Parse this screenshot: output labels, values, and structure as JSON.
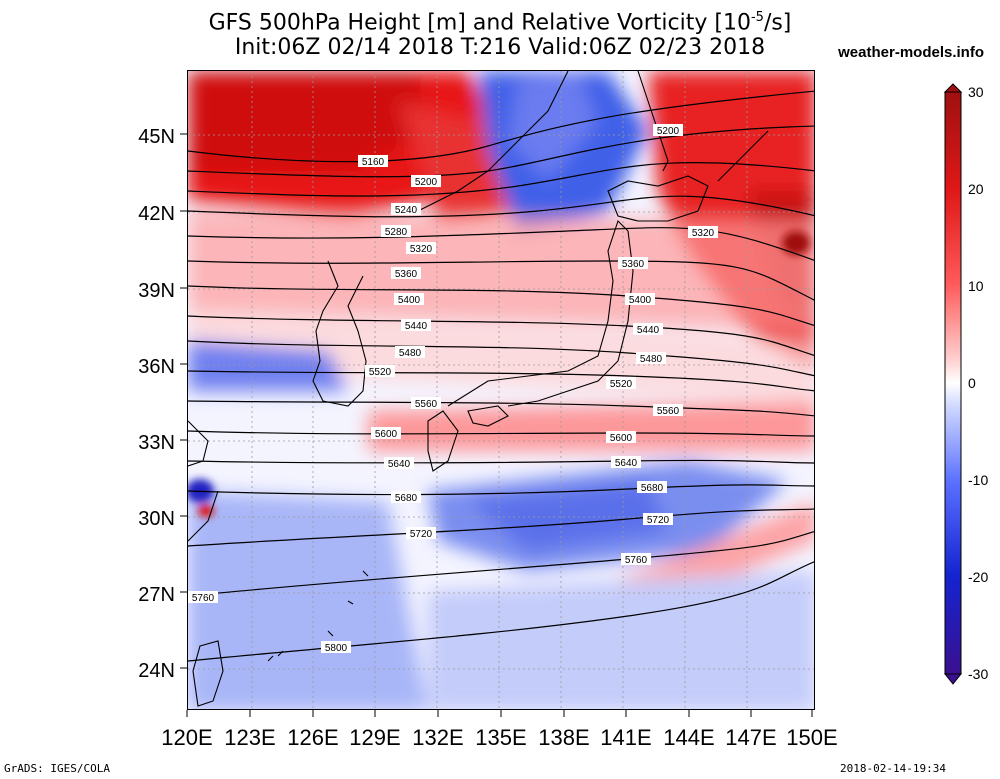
{
  "header": {
    "title_line1": "GFS 500hPa Height [m] and Relative Vorticity [10",
    "title_line1_sup": "-5",
    "title_line1_end": "/s]",
    "title_line2": "Init:06Z 02/14 2018 T:216 Valid:06Z 02/23 2018",
    "site": "weather-models.info"
  },
  "map": {
    "lon_labels": [
      "120E",
      "123E",
      "126E",
      "129E",
      "132E",
      "135E",
      "138E",
      "141E",
      "144E",
      "147E",
      "150E"
    ],
    "lat_labels": [
      "45N",
      "42N",
      "39N",
      "36N",
      "33N",
      "30N",
      "27N",
      "24N"
    ],
    "contour_labels": [
      "5160",
      "5200",
      "5240",
      "5280",
      "5320",
      "5360",
      "5400",
      "5440",
      "5480",
      "5520",
      "5560",
      "5600",
      "5640",
      "5680",
      "5720",
      "5760",
      "5800"
    ]
  },
  "colorbar": {
    "labels": [
      "30",
      "20",
      "10",
      "0",
      "-10",
      "-20",
      "-30"
    ],
    "colors": [
      "#b21414",
      "#e01a1a",
      "#ff5050",
      "#ffb0b0",
      "#ffffff",
      "#b8c4ff",
      "#5068ff",
      "#1020d0",
      "#301090"
    ]
  },
  "footer": {
    "credit": "GrADS: IGES/COLA",
    "timestamp": "2018-02-14-19:34"
  }
}
